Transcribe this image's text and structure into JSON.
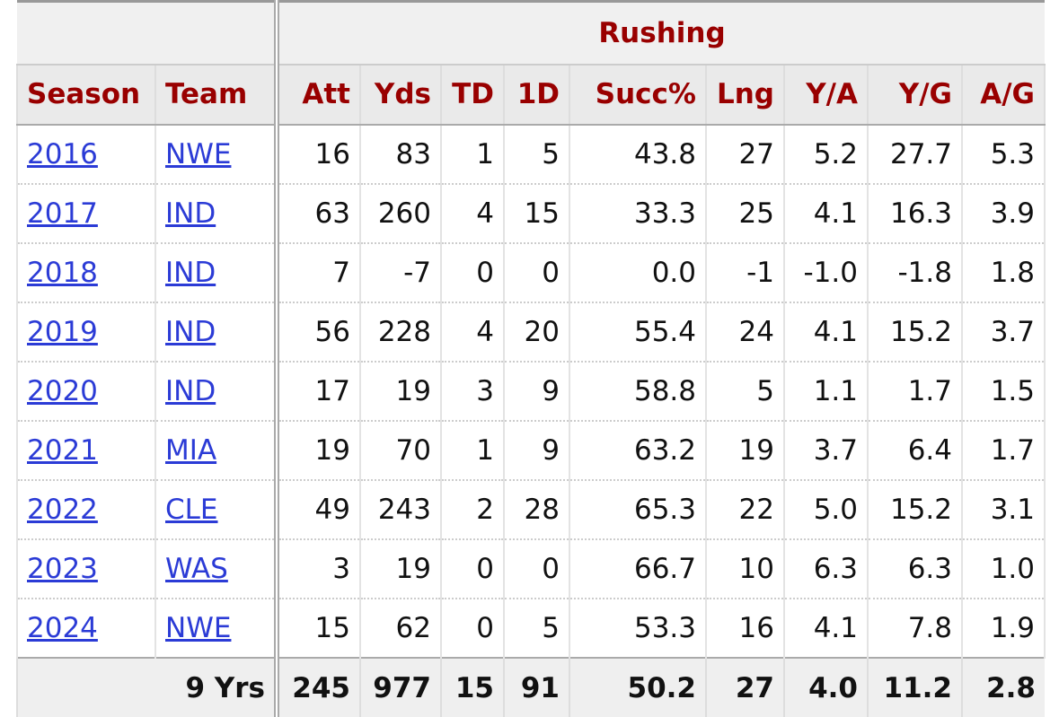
{
  "header": {
    "group": "Rushing",
    "columns": [
      "Season",
      "Team",
      "Att",
      "Yds",
      "TD",
      "1D",
      "Succ%",
      "Lng",
      "Y/A",
      "Y/G",
      "A/G"
    ]
  },
  "rows": [
    [
      "2016",
      "NWE",
      "16",
      "83",
      "1",
      "5",
      "43.8",
      "27",
      "5.2",
      "27.7",
      "5.3"
    ],
    [
      "2017",
      "IND",
      "63",
      "260",
      "4",
      "15",
      "33.3",
      "25",
      "4.1",
      "16.3",
      "3.9"
    ],
    [
      "2018",
      "IND",
      "7",
      "-7",
      "0",
      "0",
      "0.0",
      "-1",
      "-1.0",
      "-1.8",
      "1.8"
    ],
    [
      "2019",
      "IND",
      "56",
      "228",
      "4",
      "20",
      "55.4",
      "24",
      "4.1",
      "15.2",
      "3.7"
    ],
    [
      "2020",
      "IND",
      "17",
      "19",
      "3",
      "9",
      "58.8",
      "5",
      "1.1",
      "1.7",
      "1.5"
    ],
    [
      "2021",
      "MIA",
      "19",
      "70",
      "1",
      "9",
      "63.2",
      "19",
      "3.7",
      "6.4",
      "1.7"
    ],
    [
      "2022",
      "CLE",
      "49",
      "243",
      "2",
      "28",
      "65.3",
      "22",
      "5.0",
      "15.2",
      "3.1"
    ],
    [
      "2023",
      "WAS",
      "3",
      "19",
      "0",
      "0",
      "66.7",
      "10",
      "6.3",
      "6.3",
      "1.0"
    ],
    [
      "2024",
      "NWE",
      "15",
      "62",
      "0",
      "5",
      "53.3",
      "16",
      "4.1",
      "7.8",
      "1.9"
    ]
  ],
  "footer": [
    "9 Yrs",
    "245",
    "977",
    "15",
    "91",
    "50.2",
    "27",
    "4.0",
    "11.2",
    "2.8"
  ]
}
